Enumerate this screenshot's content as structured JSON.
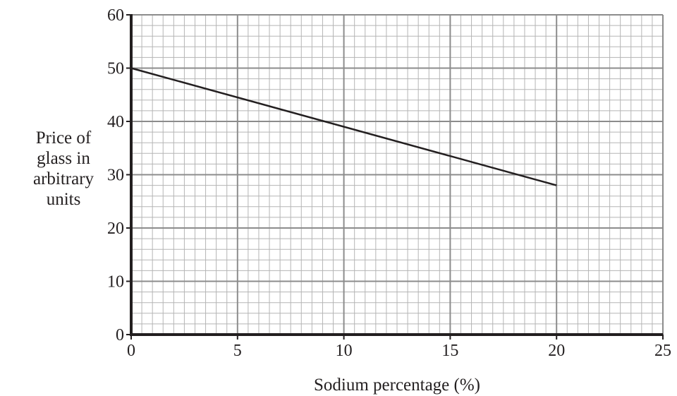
{
  "chart_data": {
    "type": "line",
    "title": "",
    "xlabel": "Sodium percentage (%)",
    "ylabel_lines": [
      "Price of",
      "glass in",
      "arbitrary",
      "units"
    ],
    "xlim": [
      0,
      25
    ],
    "ylim": [
      0,
      60
    ],
    "x_ticks": [
      "0",
      "5",
      "10",
      "15",
      "20",
      "25"
    ],
    "y_ticks": [
      "0",
      "10",
      "20",
      "30",
      "40",
      "50",
      "60"
    ],
    "grid": true,
    "x_minor_step": 0.5,
    "y_minor_step": 2,
    "x_major_step": 5,
    "y_major_step": 10,
    "series": [
      {
        "x": [
          0,
          20
        ],
        "y": [
          50,
          28
        ]
      }
    ],
    "colors": {
      "line": "#231f20",
      "major_grid": "#8c8c8c",
      "minor_grid": "#b5b5b5",
      "axis": "#231f20"
    }
  }
}
